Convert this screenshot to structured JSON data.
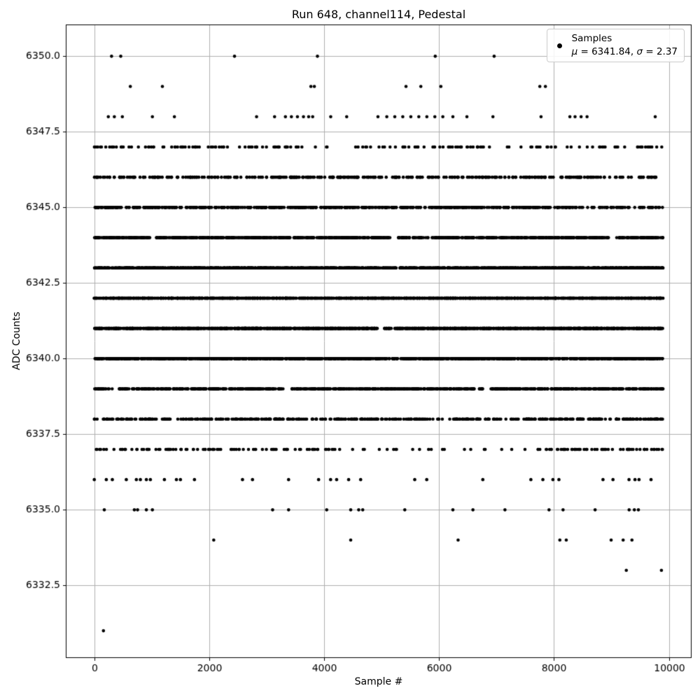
{
  "figure": {
    "title": "Run 648, channel114, Pedestal",
    "xlabel": "Sample #",
    "ylabel": "ADC Counts",
    "legend": {
      "line1": "Samples",
      "line2": "μ = 6341.84, σ = 2.37",
      "line2_parts": [
        {
          "text": "μ",
          "italic": true
        },
        {
          "text": " = 6341.84, ",
          "italic": false
        },
        {
          "text": "σ",
          "italic": true
        },
        {
          "text": " = 2.37",
          "italic": false
        }
      ]
    },
    "colors": {
      "dots": "#000000",
      "grid": "#b0b0b0",
      "spine": "#000000",
      "tick_label": "#000000",
      "legend_border": "#cccccc",
      "background": "#ffffff"
    }
  },
  "chart_data": {
    "type": "scatter",
    "title": "Run 648, channel114, Pedestal",
    "xlabel": "Sample #",
    "ylabel": "ADC Counts",
    "series_name": "Samples",
    "stats": {
      "mu": 6341.84,
      "sigma": 2.37
    },
    "n_samples": 9900,
    "xlim": [
      -495,
      10395
    ],
    "ylim": [
      6330.1,
      6351.05
    ],
    "xticks": [
      0,
      2000,
      4000,
      6000,
      8000,
      10000
    ],
    "yticks": [
      6332.5,
      6335.0,
      6337.5,
      6340.0,
      6342.5,
      6345.0,
      6347.5,
      6350.0
    ],
    "grid": true,
    "legend_position": "upper right",
    "marker": {
      "shape": "circle",
      "radius_px": 2.3,
      "color": "#000000"
    },
    "bands": [
      {
        "adc": 6350,
        "samples": [
          301,
          461,
          2441,
          3884,
          5934,
          6959
        ]
      },
      {
        "adc": 6349,
        "samples": [
          628,
          1186,
          3770,
          3830,
          5425,
          5683,
          6032,
          7754,
          7851
        ]
      },
      {
        "adc": 6348,
        "samples": [
          245,
          350,
          489,
          1012,
          1395,
          2825,
          3138,
          3327,
          3431,
          3536,
          3641,
          3731,
          3801,
          4115,
          4393,
          4937,
          5091,
          5230,
          5369,
          5509,
          5648,
          5788,
          5927,
          6066,
          6241,
          6485,
          6938,
          7775,
          8277,
          8367,
          8472,
          8576,
          9762
        ]
      },
      {
        "adc": 6347,
        "count": 170,
        "gaps": [
          [
            4250,
            4530
          ],
          [
            6900,
            7180
          ]
        ],
        "seed": 47
      },
      {
        "adc": 6346,
        "segments": [
          {
            "range": [
              0,
              8500
            ],
            "count": 335
          },
          {
            "range": [
              8500,
              9900
            ],
            "count": 38
          }
        ],
        "seed": 46
      },
      {
        "adc": 6345,
        "segments": [
          {
            "range": [
              0,
              8300
            ],
            "count": 620
          },
          {
            "range": [
              8300,
              9900
            ],
            "count": 58
          }
        ],
        "seed": 45
      },
      {
        "adc": 6344,
        "count": 1000,
        "gaps": [
          [
            975,
            1060
          ],
          [
            3410,
            3470
          ],
          [
            5170,
            5290
          ],
          [
            8950,
            9080
          ]
        ],
        "seed": 44
      },
      {
        "adc": 6343,
        "count": 1400,
        "gaps": [],
        "seed": 43
      },
      {
        "adc": 6342,
        "count": 1600,
        "gaps": [],
        "seed": 42
      },
      {
        "adc": 6341,
        "count": 1450,
        "gaps": [
          [
            4930,
            5050
          ],
          [
            5170,
            5230
          ]
        ],
        "seed": 41
      },
      {
        "adc": 6340,
        "count": 1200,
        "gaps": [],
        "seed": 40
      },
      {
        "adc": 6339,
        "count": 820,
        "gaps": [
          [
            330,
            430
          ],
          [
            3330,
            3430
          ],
          [
            6760,
            6880
          ]
        ],
        "seed": 39
      },
      {
        "adc": 6338,
        "segments": [
          {
            "range": [
              0,
              5900
            ],
            "count": 270
          },
          {
            "range": [
              5900,
              6250
            ],
            "count": 5
          },
          {
            "range": [
              6250,
              7000
            ],
            "count": 40
          },
          {
            "range": [
              7000,
              7500
            ],
            "count": 12
          },
          {
            "range": [
              7500,
              9900
            ],
            "count": 140
          }
        ],
        "seed": 38
      },
      {
        "adc": 6337,
        "segments": [
          {
            "range": [
              0,
              4200
            ],
            "count": 95
          },
          {
            "range": [
              4200,
              7700
            ],
            "count": 22
          },
          {
            "range": [
              7700,
              9900
            ],
            "count": 65
          }
        ],
        "seed": 37
      },
      {
        "adc": 6336,
        "samples": [
          1,
          210,
          315,
          558,
          733,
          803,
          907,
          977,
          1221,
          1430,
          1500,
          1744,
          2580,
          2754,
          3382,
          3904,
          4113,
          4218,
          4427,
          4636,
          5577,
          5786,
          6762,
          7598,
          7807,
          7982,
          8086,
          8853,
          9027,
          9306,
          9410,
          9480,
          9689
        ]
      },
      {
        "adc": 6335,
        "samples": [
          175,
          698,
          754,
          907,
          1012,
          3104,
          3382,
          4045,
          4463,
          4602,
          4672,
          5404,
          6241,
          6590,
          7147,
          7914,
          8158,
          8716,
          9308,
          9399,
          9469
        ]
      },
      {
        "adc": 6334,
        "samples": [
          2079,
          4463,
          6332,
          8102,
          8214,
          8995,
          9204,
          9357
        ]
      },
      {
        "adc": 6333,
        "samples": [
          9259,
          9870
        ]
      },
      {
        "adc": 6331,
        "samples": [
          160
        ]
      }
    ]
  }
}
